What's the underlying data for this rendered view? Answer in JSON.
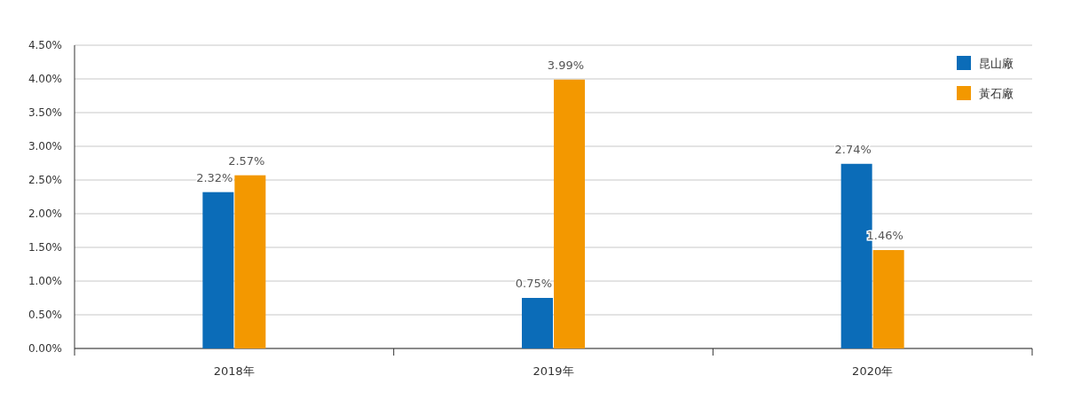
{
  "chart_data": {
    "type": "bar",
    "categories": [
      "2018年",
      "2019年",
      "2020年"
    ],
    "series": [
      {
        "name": "昆山廠",
        "color": "#0b6cb8",
        "values": [
          2.32,
          0.75,
          2.74
        ],
        "value_labels": [
          "2.32%",
          "0.75%",
          "2.74%"
        ]
      },
      {
        "name": "黃石廠",
        "color": "#f39800",
        "values": [
          2.57,
          3.99,
          1.46
        ],
        "value_labels": [
          "2.57%",
          "3.99%",
          "1.46%"
        ]
      }
    ],
    "ylim": [
      0,
      4.5
    ],
    "yticks": [
      {
        "value": 0,
        "label": "0.00%"
      },
      {
        "value": 0.5,
        "label": "0.50%"
      },
      {
        "value": 1,
        "label": "1.00%"
      },
      {
        "value": 1.5,
        "label": "1.50%"
      },
      {
        "value": 2,
        "label": "2.00%"
      },
      {
        "value": 2.5,
        "label": "2.50%"
      },
      {
        "value": 3,
        "label": "3.00%"
      },
      {
        "value": 3.5,
        "label": "3.50%"
      },
      {
        "value": 4,
        "label": "4.00%"
      },
      {
        "value": 4.5,
        "label": "4.50%"
      }
    ],
    "grid": "y",
    "legend": "top right"
  }
}
